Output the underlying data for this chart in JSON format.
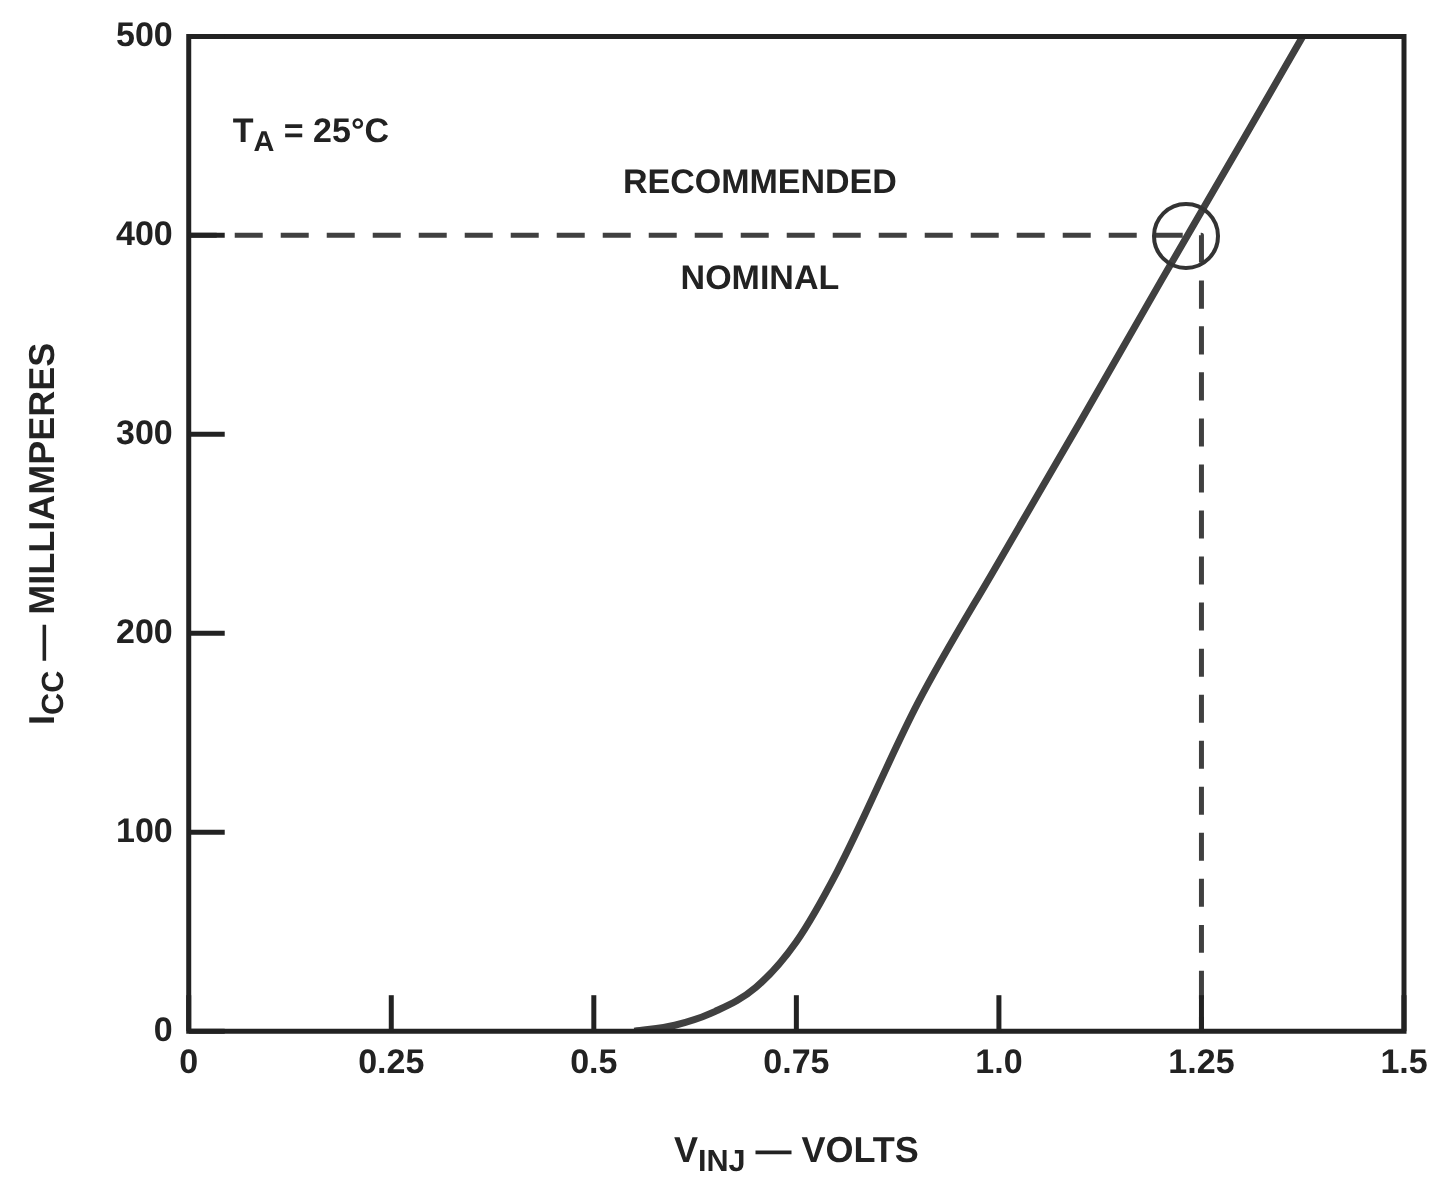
{
  "chart_data": {
    "type": "line",
    "xlabel": "V$_{INJ}$ — VOLTS",
    "ylabel": "I$_{CC}$ — MILLIAMPERES",
    "xlim": [
      0,
      1.5
    ],
    "ylim": [
      0,
      500
    ],
    "xticks": [
      0,
      0.25,
      0.5,
      0.75,
      {
        "value": 1,
        "label": "1.0"
      },
      1.25,
      1.5
    ],
    "yticks": [
      0,
      100,
      200,
      300,
      400,
      500
    ],
    "series": [
      {
        "color": "#404040",
        "line_style": "solid",
        "x": [
          0.55,
          0.6,
          0.65,
          0.7,
          0.75,
          0.8,
          0.9,
          1.0,
          1.1,
          1.2,
          1.3,
          1.375
        ],
        "values": [
          0,
          3,
          10,
          22,
          45,
          80,
          165,
          236,
          306,
          377,
          447,
          500
        ]
      },
      {
        "color": "#404040",
        "line_style": "dashed",
        "x": [
          0,
          1.25,
          1.25
        ],
        "values": [
          400,
          400,
          0
        ]
      }
    ],
    "annotations": [
      "T$_{A}$ = 25°C",
      "RECOMMENDED",
      "NOMINAL"
    ],
    "legend": false,
    "marker": "none"
  }
}
